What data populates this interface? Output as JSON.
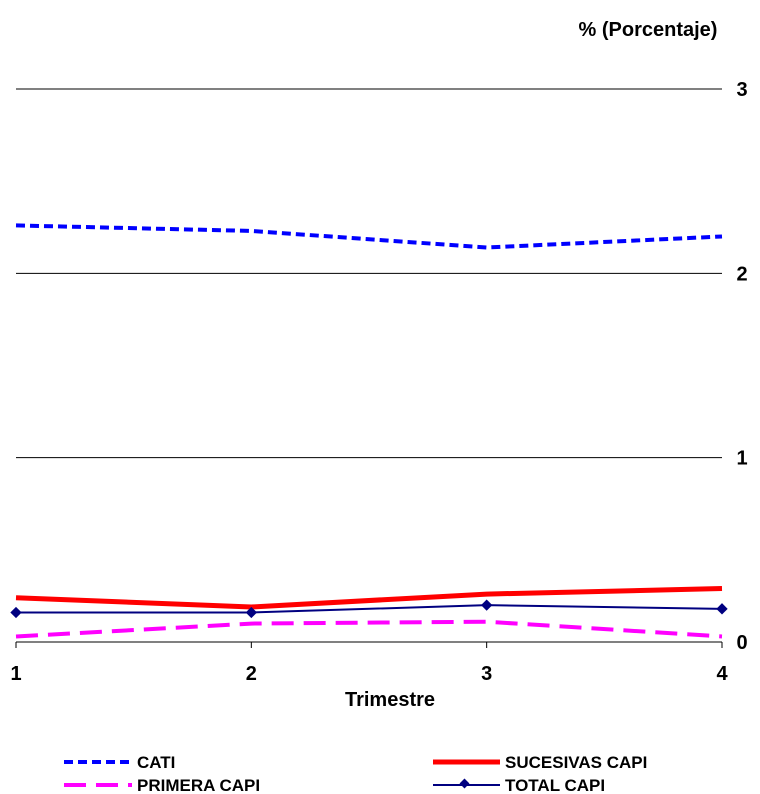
{
  "chart_data": {
    "type": "line",
    "x": [
      1,
      2,
      3,
      4
    ],
    "xlabel": "Trimestre",
    "ylabel": "% (Porcentaje)",
    "ylim": [
      0,
      3
    ],
    "xlim": [
      1,
      4
    ],
    "yticks": [
      "0",
      "1",
      "2",
      "3"
    ],
    "xticks": [
      "1",
      "2",
      "3",
      "4"
    ],
    "y_axis_side": "right",
    "grid": true,
    "legend_position": "bottom",
    "series": [
      {
        "name": "CATI",
        "values": [
          2.26,
          2.23,
          2.14,
          2.2
        ],
        "color": "#0000FF",
        "style": "dashed"
      },
      {
        "name": "PRIMERA CAPI",
        "values": [
          0.03,
          0.1,
          0.11,
          0.03
        ],
        "color": "#FF00FF",
        "style": "long-dashed"
      },
      {
        "name": "SUCESIVAS CAPI",
        "values": [
          0.24,
          0.19,
          0.26,
          0.29
        ],
        "color": "#FF0000",
        "style": "solid"
      },
      {
        "name": "TOTAL CAPI",
        "values": [
          0.16,
          0.16,
          0.2,
          0.18
        ],
        "color": "#000080",
        "style": "solid-diamond"
      }
    ]
  }
}
